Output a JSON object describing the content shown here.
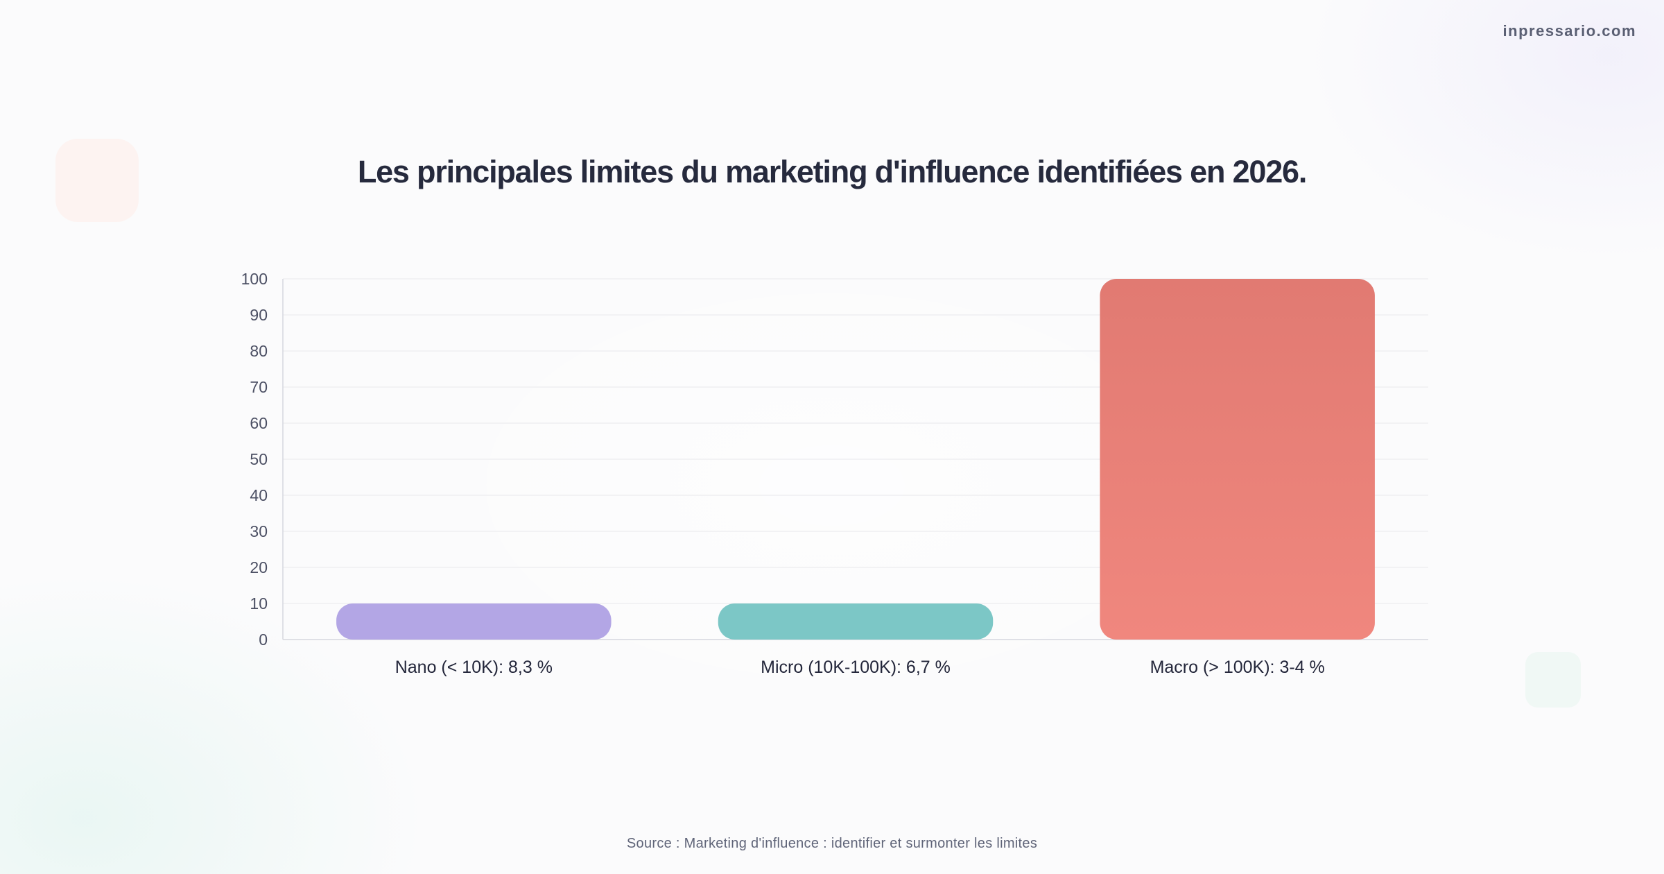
{
  "brand": "inpressario.com",
  "source": "Source : Marketing d'influence : identifier et surmonter les limites",
  "colors": {
    "bar_nano": "#b3a6e5",
    "bar_micro": "#7cc7c6",
    "bar_macro_top": "#e17a72",
    "bar_macro_bottom": "#f0877e"
  },
  "chart_data": {
    "type": "bar",
    "title": "Les principales limites du marketing d'influence identifiées en 2026.",
    "categories": [
      "Nano (< 10K): 8,3 %",
      "Micro (10K-100K): 6,7 %",
      "Macro (> 100K): 3-4 %"
    ],
    "values": [
      10,
      10,
      100
    ],
    "yticks": [
      0,
      10,
      20,
      30,
      40,
      50,
      60,
      70,
      80,
      90,
      100
    ],
    "ylim": [
      0,
      100
    ],
    "xlabel": "",
    "ylabel": "",
    "grid": true,
    "legend": "none"
  }
}
